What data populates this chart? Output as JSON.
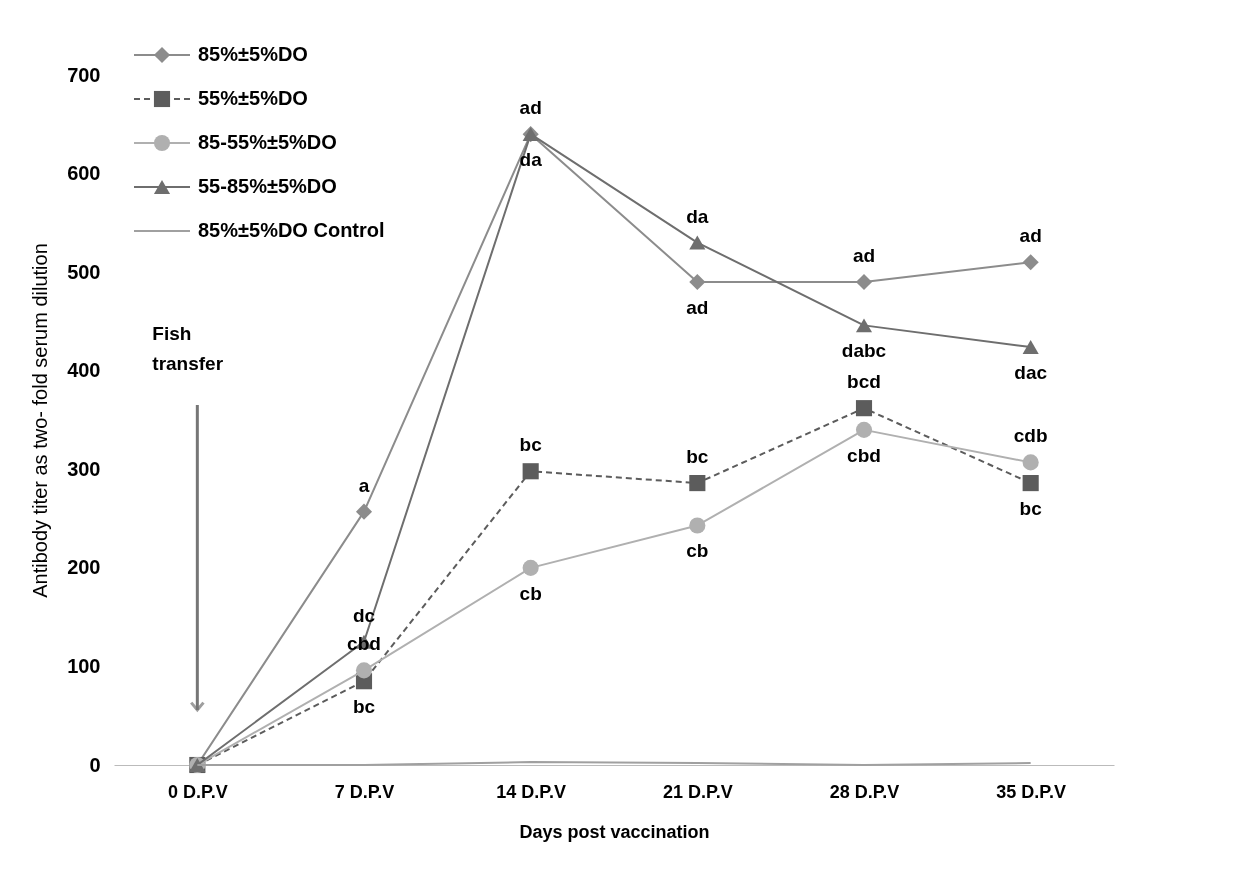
{
  "chart_data": {
    "type": "line",
    "xlabel": "Days post vaccination",
    "ylabel": "Antibody  titer as two- fold serum dilution",
    "categories": [
      "0 D.P.V",
      "7 D.P.V",
      "14 D.P.V",
      "21 D.P.V",
      "28 D.P.V",
      "35 D.P.V"
    ],
    "series": [
      {
        "name": "85%±5%DO",
        "color": "#8c8c8c",
        "marker": "diamond",
        "line_style": "solid",
        "values": [
          0,
          257,
          640,
          490,
          490,
          510
        ],
        "value_labels": [
          null,
          "a",
          "ad",
          "ad",
          "ad",
          "ad"
        ]
      },
      {
        "name": "55%±5%DO",
        "color": "#5c5c5c",
        "marker": "square",
        "line_style": "dashed",
        "values": [
          0,
          85,
          298,
          286,
          362,
          286
        ],
        "value_labels": [
          null,
          "bc",
          "bc",
          "bc",
          "bcd",
          "bc"
        ]
      },
      {
        "name": "85-55%±5%DO",
        "color": "#b0b0b0",
        "marker": "circle",
        "line_style": "solid",
        "values": [
          0,
          96,
          200,
          243,
          340,
          307
        ],
        "value_labels": [
          null,
          "cbd",
          "cb",
          "cb",
          "cbd",
          "cdb"
        ]
      },
      {
        "name": "55-85%±5%DO",
        "color": "#6e6e6e",
        "marker": "triangle",
        "line_style": "solid",
        "values": [
          0,
          125,
          640,
          530,
          446,
          424
        ],
        "value_labels": [
          null,
          "dc",
          "da",
          "da",
          "dabc",
          "dac"
        ]
      },
      {
        "name": "85%±5%DO Control",
        "color": "#a0a0a0",
        "marker": "none",
        "line_style": "solid",
        "values": [
          0,
          0,
          3,
          2,
          0,
          2
        ]
      }
    ],
    "ylim": [
      0,
      700
    ],
    "yticks": [
      0,
      100,
      200,
      300,
      400,
      500,
      600,
      700
    ],
    "legend": "top left",
    "grid": false,
    "annotations": [
      "Fish transfer"
    ]
  }
}
